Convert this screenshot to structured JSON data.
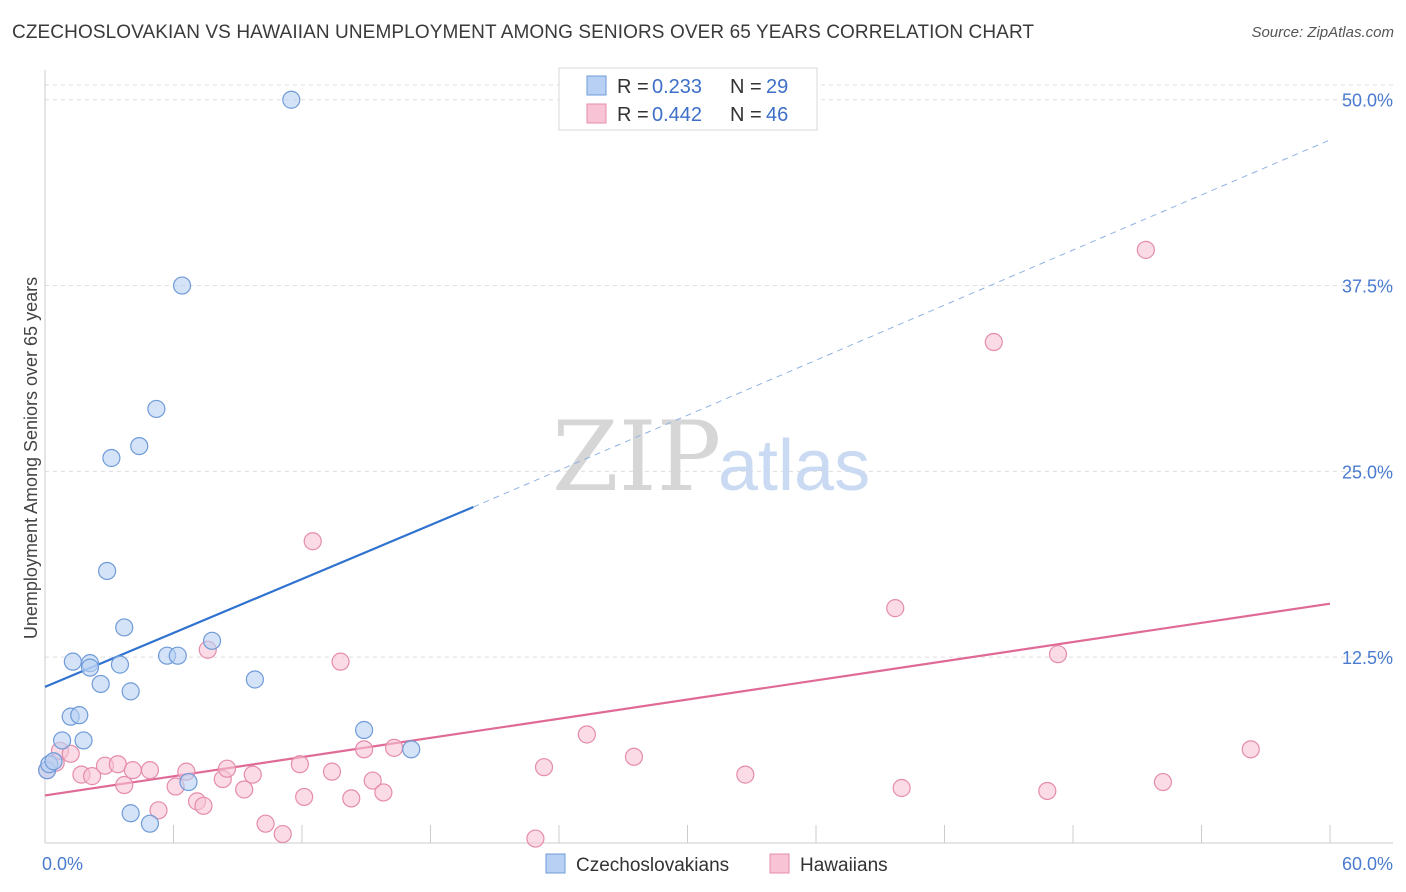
{
  "title": "CZECHOSLOVAKIAN VS HAWAIIAN UNEMPLOYMENT AMONG SENIORS OVER 65 YEARS CORRELATION CHART",
  "source": "Source: ZipAtlas.com",
  "watermark": {
    "zip": "ZIP",
    "atlas": "atlas"
  },
  "colors": {
    "blue_fill": "#b7d0f3",
    "blue_stroke": "#6f9bd8",
    "blue_line": "#2f72d0",
    "pink_fill": "#f7c3d5",
    "pink_stroke": "#e58cab",
    "pink_line": "#e06a96",
    "grid": "#dedede",
    "tick_text": "#4a7bd0"
  },
  "legend": {
    "rows": [
      {
        "r_label": "R =",
        "r_value": "0.233",
        "n_label": "N =",
        "n_value": "29"
      },
      {
        "r_label": "R =",
        "r_value": "0.442",
        "n_label": "N =",
        "n_value": "46"
      }
    ]
  },
  "bottom_legend": [
    "Czechoslovakians",
    "Hawaiians"
  ],
  "chart_data": {
    "type": "scatter",
    "title": "CZECHOSLOVAKIAN VS HAWAIIAN UNEMPLOYMENT AMONG SENIORS OVER 65 YEARS CORRELATION CHART",
    "xlabel": "",
    "ylabel": "Unemployment Among Seniors over 65 years",
    "xlim": [
      0,
      60
    ],
    "ylim": [
      0,
      52
    ],
    "x_ticks": [
      {
        "value": 0,
        "label": "0.0%"
      },
      {
        "value": 60,
        "label": "60.0%"
      }
    ],
    "y_ticks": [
      {
        "value": 12.5,
        "label": "12.5%"
      },
      {
        "value": 25,
        "label": "25.0%"
      },
      {
        "value": 37.5,
        "label": "37.5%"
      },
      {
        "value": 50,
        "label": "50.0%"
      }
    ],
    "legend_position": "top-center",
    "series": [
      {
        "name": "Czechoslovakians",
        "R": 0.233,
        "N": 29,
        "points": [
          {
            "x": 0.1,
            "y": 4.9
          },
          {
            "x": 0.2,
            "y": 5.3
          },
          {
            "x": 0.4,
            "y": 5.5
          },
          {
            "x": 0.8,
            "y": 6.9
          },
          {
            "x": 1.2,
            "y": 8.5
          },
          {
            "x": 1.6,
            "y": 8.6
          },
          {
            "x": 1.3,
            "y": 12.2
          },
          {
            "x": 2.1,
            "y": 12.1
          },
          {
            "x": 2.1,
            "y": 11.8
          },
          {
            "x": 1.8,
            "y": 6.9
          },
          {
            "x": 2.6,
            "y": 10.7
          },
          {
            "x": 3.5,
            "y": 12.0
          },
          {
            "x": 2.9,
            "y": 18.3
          },
          {
            "x": 3.7,
            "y": 14.5
          },
          {
            "x": 3.1,
            "y": 25.9
          },
          {
            "x": 4.4,
            "y": 26.7
          },
          {
            "x": 5.2,
            "y": 29.2
          },
          {
            "x": 4.0,
            "y": 10.2
          },
          {
            "x": 5.7,
            "y": 12.6
          },
          {
            "x": 6.2,
            "y": 12.6
          },
          {
            "x": 7.8,
            "y": 13.6
          },
          {
            "x": 6.4,
            "y": 37.5
          },
          {
            "x": 9.8,
            "y": 11.0
          },
          {
            "x": 11.5,
            "y": 50.0
          },
          {
            "x": 14.9,
            "y": 7.6
          },
          {
            "x": 17.1,
            "y": 6.3
          },
          {
            "x": 6.7,
            "y": 4.1
          },
          {
            "x": 4.0,
            "y": 2.0
          },
          {
            "x": 4.9,
            "y": 1.3
          }
        ],
        "trend": {
          "x0": 0,
          "y0": 10.5,
          "x1": 20,
          "y1": 22.6,
          "dashed_to_x": 60,
          "dashed_to_y": 47.3
        }
      },
      {
        "name": "Hawaiians",
        "R": 0.442,
        "N": 46,
        "points": [
          {
            "x": 0.1,
            "y": 4.9
          },
          {
            "x": 0.5,
            "y": 5.4
          },
          {
            "x": 0.7,
            "y": 6.2
          },
          {
            "x": 1.2,
            "y": 6.0
          },
          {
            "x": 1.7,
            "y": 4.6
          },
          {
            "x": 2.2,
            "y": 4.5
          },
          {
            "x": 2.8,
            "y": 5.2
          },
          {
            "x": 3.4,
            "y": 5.3
          },
          {
            "x": 3.7,
            "y": 3.9
          },
          {
            "x": 4.1,
            "y": 4.9
          },
          {
            "x": 4.9,
            "y": 4.9
          },
          {
            "x": 5.3,
            "y": 2.2
          },
          {
            "x": 6.1,
            "y": 3.8
          },
          {
            "x": 6.6,
            "y": 4.8
          },
          {
            "x": 7.1,
            "y": 2.8
          },
          {
            "x": 7.4,
            "y": 2.5
          },
          {
            "x": 7.6,
            "y": 13.0
          },
          {
            "x": 8.3,
            "y": 4.3
          },
          {
            "x": 8.5,
            "y": 5.0
          },
          {
            "x": 9.3,
            "y": 3.6
          },
          {
            "x": 9.7,
            "y": 4.6
          },
          {
            "x": 10.3,
            "y": 1.3
          },
          {
            "x": 11.1,
            "y": 0.6
          },
          {
            "x": 11.9,
            "y": 5.3
          },
          {
            "x": 12.1,
            "y": 3.1
          },
          {
            "x": 12.5,
            "y": 20.3
          },
          {
            "x": 13.4,
            "y": 4.8
          },
          {
            "x": 13.8,
            "y": 12.2
          },
          {
            "x": 14.3,
            "y": 3.0
          },
          {
            "x": 14.9,
            "y": 6.3
          },
          {
            "x": 15.3,
            "y": 4.2
          },
          {
            "x": 15.8,
            "y": 3.4
          },
          {
            "x": 16.3,
            "y": 6.4
          },
          {
            "x": 22.9,
            "y": 0.3
          },
          {
            "x": 23.3,
            "y": 5.1
          },
          {
            "x": 25.3,
            "y": 7.3
          },
          {
            "x": 27.5,
            "y": 5.8
          },
          {
            "x": 32.7,
            "y": 4.6
          },
          {
            "x": 39.7,
            "y": 15.8
          },
          {
            "x": 40.0,
            "y": 3.7
          },
          {
            "x": 44.3,
            "y": 33.7
          },
          {
            "x": 47.3,
            "y": 12.7
          },
          {
            "x": 46.8,
            "y": 3.5
          },
          {
            "x": 51.4,
            "y": 39.9
          },
          {
            "x": 52.2,
            "y": 4.1
          },
          {
            "x": 56.3,
            "y": 6.3
          }
        ],
        "trend": {
          "x0": 0,
          "y0": 3.2,
          "x1": 60,
          "y1": 16.1
        }
      }
    ]
  }
}
